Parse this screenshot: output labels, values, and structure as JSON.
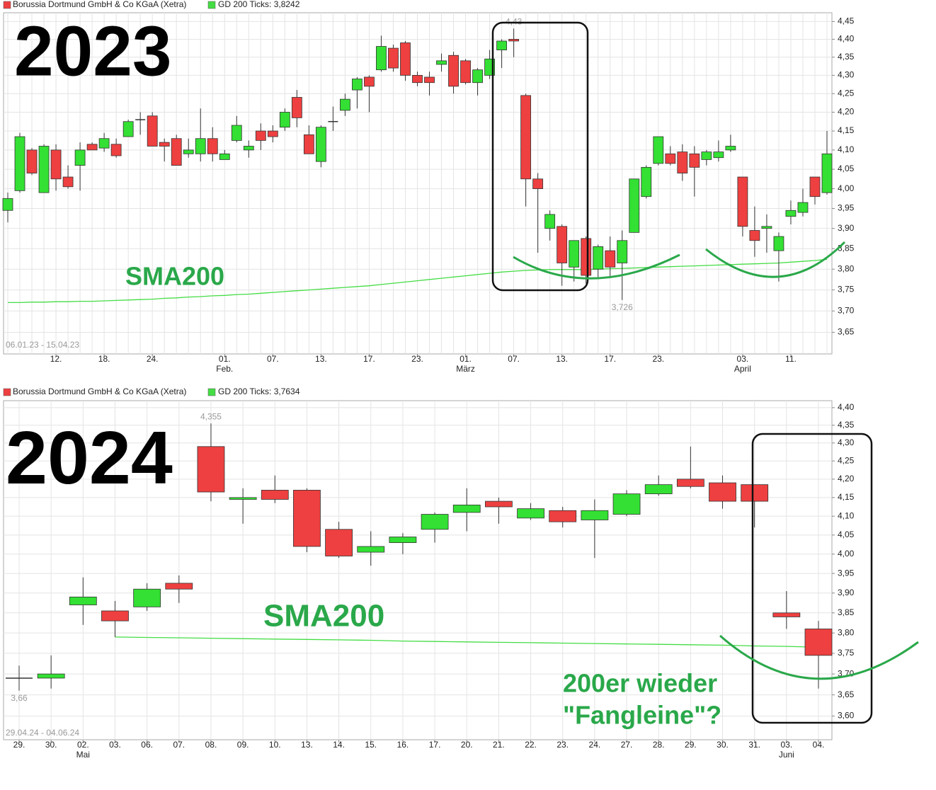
{
  "chart_data": [
    {
      "type": "candlestick",
      "log_scale": true,
      "grid": true,
      "date_range": "06.01.23 - 15.04.23",
      "annotations": [
        "2023",
        "SMA200"
      ],
      "extreme_labels": [
        {
          "value": 4.43,
          "label": "4,43"
        },
        {
          "value": 3.726,
          "label": "3,726"
        }
      ],
      "ylim": [
        3.6,
        4.475
      ],
      "yticks": [
        {
          "value": 3.65,
          "label": "3,65"
        },
        {
          "value": 3.7,
          "label": "3,70"
        },
        {
          "value": 3.75,
          "label": "3,75"
        },
        {
          "value": 3.8,
          "label": "3,80"
        },
        {
          "value": 3.85,
          "label": "3,85"
        },
        {
          "value": 3.9,
          "label": "3,90"
        },
        {
          "value": 3.95,
          "label": "3,95"
        },
        {
          "value": 4.0,
          "label": "4,00"
        },
        {
          "value": 4.05,
          "label": "4,05"
        },
        {
          "value": 4.1,
          "label": "4,10"
        },
        {
          "value": 4.15,
          "label": "4,15"
        },
        {
          "value": 4.2,
          "label": "4,20"
        },
        {
          "value": 4.25,
          "label": "4,25"
        },
        {
          "value": 4.3,
          "label": "4,30"
        },
        {
          "value": 4.35,
          "label": "4,35"
        },
        {
          "value": 4.4,
          "label": "4,40"
        },
        {
          "value": 4.45,
          "label": "4,45"
        }
      ],
      "categories": [
        null,
        null,
        null,
        null,
        "12.",
        null,
        null,
        null,
        "18.",
        null,
        null,
        null,
        "24.",
        null,
        null,
        null,
        null,
        null,
        "01.",
        null,
        null,
        null,
        "07.",
        null,
        null,
        null,
        "13.",
        null,
        null,
        null,
        "17.",
        null,
        null,
        null,
        "23.",
        null,
        null,
        null,
        "01.",
        null,
        null,
        null,
        "07.",
        null,
        null,
        null,
        "13.",
        null,
        null,
        null,
        "17.",
        null,
        null,
        null,
        "23.",
        null,
        null,
        null,
        null,
        null,
        null,
        "03.",
        null,
        null,
        null,
        "11.",
        null,
        null,
        null
      ],
      "months": [
        null,
        null,
        null,
        null,
        null,
        null,
        null,
        null,
        null,
        null,
        null,
        null,
        null,
        null,
        null,
        null,
        null,
        null,
        "Feb.",
        null,
        null,
        null,
        null,
        null,
        null,
        null,
        null,
        null,
        null,
        null,
        null,
        null,
        null,
        null,
        null,
        null,
        null,
        null,
        "März",
        null,
        null,
        null,
        null,
        null,
        null,
        null,
        null,
        null,
        null,
        null,
        null,
        null,
        null,
        null,
        null,
        null,
        null,
        null,
        null,
        null,
        null,
        "April",
        null,
        null,
        null,
        null,
        null,
        null,
        null
      ],
      "series": [
        {
          "name": "Borussia Dortmund GmbH & Co KGaA (Xetra)",
          "up_color": "#33e033",
          "down_color": "#ee4040",
          "open": [
            3.945,
            3.995,
            4.1,
            3.99,
            4.1,
            4.03,
            4.06,
            4.115,
            4.105,
            4.115,
            4.135,
            4.18,
            4.19,
            4.12,
            4.13,
            4.09,
            4.09,
            4.13,
            4.075,
            4.125,
            4.1,
            4.15,
            4.15,
            4.16,
            4.24,
            4.14,
            4.07,
            4.175,
            4.205,
            4.26,
            4.295,
            4.315,
            4.375,
            4.39,
            4.3,
            4.295,
            4.33,
            4.355,
            4.34,
            4.28,
            4.3,
            4.37,
            4.4,
            4.245,
            4.025,
            3.9,
            3.905,
            3.805,
            3.875,
            3.8,
            3.845,
            3.815,
            3.89,
            3.98,
            4.065,
            4.09,
            4.095,
            4.09,
            4.075,
            4.08,
            4.1,
            4.03,
            3.895,
            3.9,
            3.845,
            3.93,
            3.94,
            4.03,
            3.99
          ],
          "high": [
            3.99,
            4.145,
            4.105,
            4.115,
            4.115,
            4.06,
            4.12,
            4.12,
            4.145,
            4.13,
            4.18,
            4.2,
            4.2,
            4.13,
            4.14,
            4.13,
            4.21,
            4.16,
            4.1,
            4.19,
            4.125,
            4.17,
            4.165,
            4.21,
            4.26,
            4.165,
            4.165,
            4.215,
            4.25,
            4.295,
            4.3,
            4.41,
            4.385,
            4.395,
            4.31,
            4.31,
            4.36,
            4.365,
            4.345,
            4.32,
            4.37,
            4.4,
            4.43,
            4.25,
            4.04,
            3.945,
            3.91,
            3.87,
            3.88,
            3.86,
            3.88,
            3.895,
            4.025,
            4.06,
            4.135,
            4.11,
            4.115,
            4.11,
            4.1,
            4.125,
            4.14,
            4.03,
            3.955,
            3.935,
            3.89,
            3.97,
            4.0,
            4.03,
            4.15
          ],
          "low": [
            3.915,
            3.99,
            4.035,
            3.99,
            3.995,
            4.0,
            3.995,
            4.1,
            4.095,
            4.08,
            4.135,
            4.14,
            4.11,
            4.07,
            4.06,
            4.08,
            4.07,
            4.07,
            4.075,
            4.12,
            4.08,
            4.1,
            4.12,
            4.15,
            4.16,
            4.09,
            4.055,
            4.15,
            4.19,
            4.21,
            4.2,
            4.31,
            4.31,
            4.285,
            4.27,
            4.245,
            4.31,
            4.25,
            4.275,
            4.245,
            4.29,
            4.32,
            4.35,
            3.955,
            3.84,
            3.87,
            3.76,
            3.77,
            3.765,
            3.78,
            3.78,
            3.726,
            3.89,
            3.975,
            4.06,
            4.06,
            4.02,
            3.98,
            4.06,
            4.07,
            4.095,
            3.88,
            3.83,
            3.84,
            3.77,
            3.91,
            3.93,
            3.96,
            3.985
          ],
          "close": [
            3.975,
            4.135,
            4.04,
            4.11,
            4.025,
            4.005,
            4.1,
            4.1,
            4.13,
            4.085,
            4.175,
            4.18,
            4.11,
            4.11,
            4.06,
            4.1,
            4.13,
            4.09,
            4.09,
            4.165,
            4.11,
            4.125,
            4.135,
            4.2,
            4.185,
            4.09,
            4.16,
            4.175,
            4.235,
            4.29,
            4.27,
            4.38,
            4.32,
            4.3,
            4.28,
            4.28,
            4.34,
            4.27,
            4.28,
            4.315,
            4.345,
            4.395,
            4.395,
            4.025,
            4.0,
            3.935,
            3.815,
            3.87,
            3.785,
            3.855,
            3.805,
            3.87,
            4.025,
            4.055,
            4.135,
            4.065,
            4.04,
            4.055,
            4.095,
            4.095,
            4.11,
            3.905,
            3.87,
            3.905,
            3.88,
            3.945,
            3.965,
            3.98,
            4.09
          ]
        },
        {
          "name": "GD 200 Ticks: 3,8242",
          "color": "#44dd44",
          "values": [
            3.72,
            3.72,
            3.721,
            3.721,
            3.722,
            3.722,
            3.723,
            3.723,
            3.724,
            3.725,
            3.726,
            3.727,
            3.728,
            3.73,
            3.731,
            3.733,
            3.734,
            3.736,
            3.737,
            3.739,
            3.74,
            3.742,
            3.744,
            3.746,
            3.748,
            3.75,
            3.752,
            3.754,
            3.756,
            3.758,
            3.76,
            3.763,
            3.766,
            3.769,
            3.772,
            3.775,
            3.778,
            3.781,
            3.784,
            3.787,
            3.79,
            3.793,
            3.795,
            3.797,
            3.798,
            3.799,
            3.799,
            3.799,
            3.799,
            3.8,
            3.801,
            3.802,
            3.803,
            3.804,
            3.805,
            3.806,
            3.807,
            3.808,
            3.809,
            3.81,
            3.811,
            3.812,
            3.813,
            3.814,
            3.815,
            3.817,
            3.819,
            3.821,
            3.824
          ]
        }
      ]
    },
    {
      "type": "candlestick",
      "log_scale": true,
      "grid": true,
      "date_range": "29.04.24 - 04.06.24",
      "annotations": [
        "2024",
        "SMA200",
        "200er wieder",
        "\"Fangleine\"?"
      ],
      "extreme_labels": [
        {
          "value": 4.355,
          "label": "4,355"
        },
        {
          "value": 3.66,
          "label": "3,66"
        }
      ],
      "ylim": [
        3.545,
        4.42
      ],
      "yticks": [
        {
          "value": 3.6,
          "label": "3,60"
        },
        {
          "value": 3.65,
          "label": "3,65"
        },
        {
          "value": 3.7,
          "label": "3,70"
        },
        {
          "value": 3.75,
          "label": "3,75"
        },
        {
          "value": 3.8,
          "label": "3,80"
        },
        {
          "value": 3.85,
          "label": "3,85"
        },
        {
          "value": 3.9,
          "label": "3,90"
        },
        {
          "value": 3.95,
          "label": "3,95"
        },
        {
          "value": 4.0,
          "label": "4,00"
        },
        {
          "value": 4.05,
          "label": "4,05"
        },
        {
          "value": 4.1,
          "label": "4,10"
        },
        {
          "value": 4.15,
          "label": "4,15"
        },
        {
          "value": 4.2,
          "label": "4,20"
        },
        {
          "value": 4.25,
          "label": "4,25"
        },
        {
          "value": 4.3,
          "label": "4,30"
        },
        {
          "value": 4.35,
          "label": "4,35"
        },
        {
          "value": 4.4,
          "label": "4,40"
        }
      ],
      "categories": [
        "29.",
        "30.",
        "02.",
        "03.",
        "06.",
        "07.",
        "08.",
        "09.",
        "10.",
        "13.",
        "14.",
        "15.",
        "16.",
        "17.",
        "20.",
        "21.",
        "22.",
        "23.",
        "24.",
        "27.",
        "28.",
        "29.",
        "30.",
        "31.",
        "03.",
        "04."
      ],
      "months": [
        null,
        null,
        "Mai",
        null,
        null,
        null,
        null,
        null,
        null,
        null,
        null,
        null,
        null,
        null,
        null,
        null,
        null,
        null,
        null,
        null,
        null,
        null,
        null,
        null,
        "Juni",
        null
      ],
      "series": [
        {
          "name": "Borussia Dortmund GmbH & Co KGaA (Xetra)",
          "up_color": "#33e033",
          "down_color": "#ee4040",
          "open": [
            3.69,
            3.69,
            3.87,
            3.855,
            3.865,
            3.925,
            4.29,
            4.145,
            4.17,
            4.17,
            4.065,
            4.005,
            4.03,
            4.065,
            4.11,
            4.14,
            4.095,
            4.115,
            4.09,
            4.105,
            4.16,
            4.2,
            4.19,
            4.185,
            3.85,
            3.81
          ],
          "high": [
            3.72,
            3.745,
            3.94,
            3.88,
            3.925,
            3.945,
            4.355,
            4.175,
            4.21,
            4.175,
            4.085,
            4.06,
            4.055,
            4.11,
            4.175,
            4.15,
            4.135,
            4.125,
            4.145,
            4.17,
            4.21,
            4.29,
            4.21,
            4.185,
            3.905,
            3.83
          ],
          "low": [
            3.66,
            3.665,
            3.82,
            3.79,
            3.855,
            3.875,
            4.14,
            4.08,
            4.135,
            4.005,
            3.99,
            3.97,
            4.0,
            4.03,
            4.06,
            4.08,
            4.09,
            4.07,
            3.99,
            4.1,
            4.155,
            4.175,
            4.12,
            4.07,
            3.81,
            3.665
          ],
          "close": [
            3.69,
            3.7,
            3.89,
            3.83,
            3.91,
            3.91,
            4.165,
            4.15,
            4.145,
            4.02,
            3.995,
            4.02,
            4.045,
            4.105,
            4.13,
            4.125,
            4.12,
            4.085,
            4.115,
            4.16,
            4.185,
            4.18,
            4.14,
            4.14,
            3.84,
            3.745
          ]
        },
        {
          "name": "GD 200 Ticks: 3,7634",
          "color": "#44dd44",
          "values": [
            null,
            null,
            null,
            3.79,
            3.789,
            3.788,
            3.787,
            3.786,
            3.785,
            3.784,
            3.783,
            3.782,
            3.78,
            3.779,
            3.778,
            3.777,
            3.776,
            3.775,
            3.774,
            3.773,
            3.772,
            3.771,
            3.77,
            3.768,
            3.767,
            3.765
          ]
        }
      ]
    }
  ]
}
